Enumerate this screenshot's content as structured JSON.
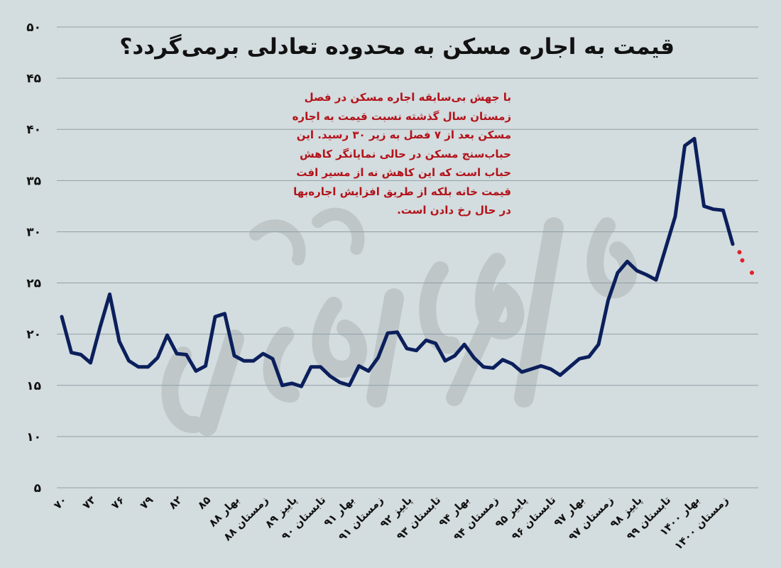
{
  "chart_data": {
    "type": "line",
    "title": "قیمت به اجاره مسکن به محدوده تعادلی برمی‌گردد؟",
    "annotation": "با جهش بی‌سابقه اجاره مسکن در فصل زمستان سال گذشته نسبت قیمت به اجاره مسکن بعد از ۷ فصل به زیر ۳۰ رسید. این حباب‌سنج مسکن در حالی نمایانگر کاهش حباب است که این کاهش نه از مسیر افت قیمت خانه بلکه از طریق افزایش اجاره‌بها در حال رخ دادن است.",
    "ylim": [
      5,
      50
    ],
    "yticks": [
      "۵",
      "۱۰",
      "۱۵",
      "۲۰",
      "۲۵",
      "۳۰",
      "۳۵",
      "۴۰",
      "۴۵",
      "۵۰"
    ],
    "yticks_values": [
      5,
      10,
      15,
      20,
      25,
      30,
      35,
      40,
      45,
      50
    ],
    "grid": true,
    "xtick_labels": [
      "۷۰",
      "۷۳",
      "۷۶",
      "۷۹",
      "۸۲",
      "۸۵",
      "بهار ۸۸",
      "زمستان ۸۸",
      "پاییز ۸۹",
      "تابستان ۹۰",
      "بهار ۹۱",
      "زمستان ۹۱",
      "پاییز ۹۲",
      "تابستان ۹۳",
      "بهار ۹۴",
      "زمستان ۹۴",
      "پاییز ۹۵",
      "تابستان ۹۶",
      "بهار ۹۷",
      "زمستان ۹۷",
      "پاییز ۹۸",
      "تابستان ۹۹",
      "بهار ۱۴۰۰",
      "زمستان ۱۴۰۰"
    ],
    "xtick_positions": [
      0,
      3,
      6,
      9,
      12,
      15,
      18,
      21,
      24,
      27,
      30,
      33,
      36,
      39,
      42,
      45,
      48,
      51,
      54,
      57,
      60,
      63,
      66,
      69
    ],
    "series": [
      {
        "color": "#0b1f5c",
        "style": "solid",
        "values": [
          21.7,
          18.2,
          18.0,
          17.2,
          20.7,
          23.9,
          19.3,
          17.4,
          16.8,
          16.8,
          17.7,
          19.9,
          18.1,
          18.0,
          16.4,
          16.9,
          21.7,
          22.0,
          17.9,
          17.4,
          17.4,
          18.1,
          17.6,
          15.0,
          15.2,
          14.9,
          16.8,
          16.8,
          15.9,
          15.3,
          15.0,
          16.9,
          16.4,
          17.7,
          20.1,
          20.2,
          18.6,
          18.4,
          19.4,
          19.1,
          17.4,
          17.9,
          19.0,
          17.7,
          16.8,
          16.7,
          17.5,
          17.1,
          16.3,
          16.6,
          16.9,
          16.6,
          16.0,
          16.8,
          17.6,
          17.8,
          19.0,
          23.3,
          26.0,
          27.1,
          26.2,
          25.8,
          25.3,
          28.4,
          31.5,
          38.4,
          39.1,
          32.5,
          32.2,
          32.1,
          28.8
        ]
      },
      {
        "color": "#e0202a",
        "style": "dotted",
        "start_index": 70,
        "values": [
          28.8,
          27.2,
          26.0
        ]
      }
    ]
  }
}
